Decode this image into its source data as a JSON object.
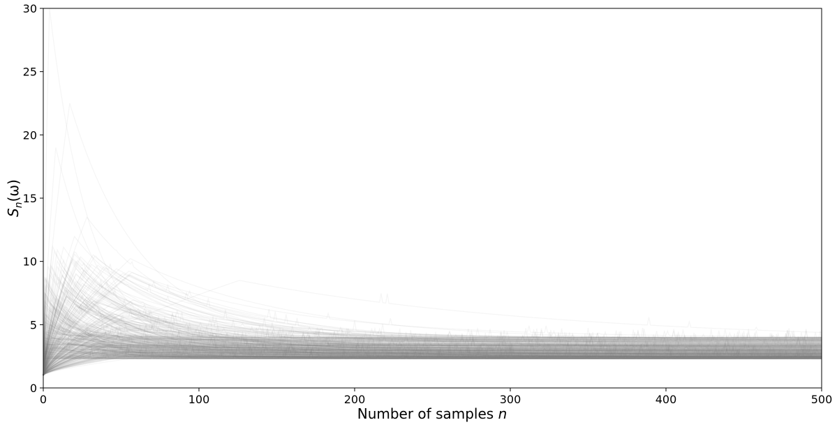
{
  "chart_data": {
    "type": "line",
    "title": "",
    "xlabel": "Number of samples",
    "xlabel_var": "n",
    "ylabel_main": "S",
    "ylabel_sub": "n",
    "ylabel_arg": "(ω)",
    "xlim": [
      0,
      500
    ],
    "ylim": [
      0,
      30
    ],
    "xticks": [
      0,
      100,
      200,
      300,
      400,
      500
    ],
    "yticks": [
      0,
      5,
      10,
      15,
      20,
      25,
      30
    ],
    "grid": false,
    "legend": "none",
    "line_color": "#808080",
    "line_opacity": 0.08,
    "n_paths": 400,
    "paths_start_value": 1.0,
    "converged_band": [
      2.3,
      4.0
    ],
    "observed_peaks": [
      {
        "n": 4,
        "value": 30
      },
      {
        "n": 8,
        "value": 19
      },
      {
        "n": 17,
        "value": 22.5
      },
      {
        "n": 28,
        "value": 13.5
      },
      {
        "n": 126,
        "value": 8.5
      }
    ]
  }
}
